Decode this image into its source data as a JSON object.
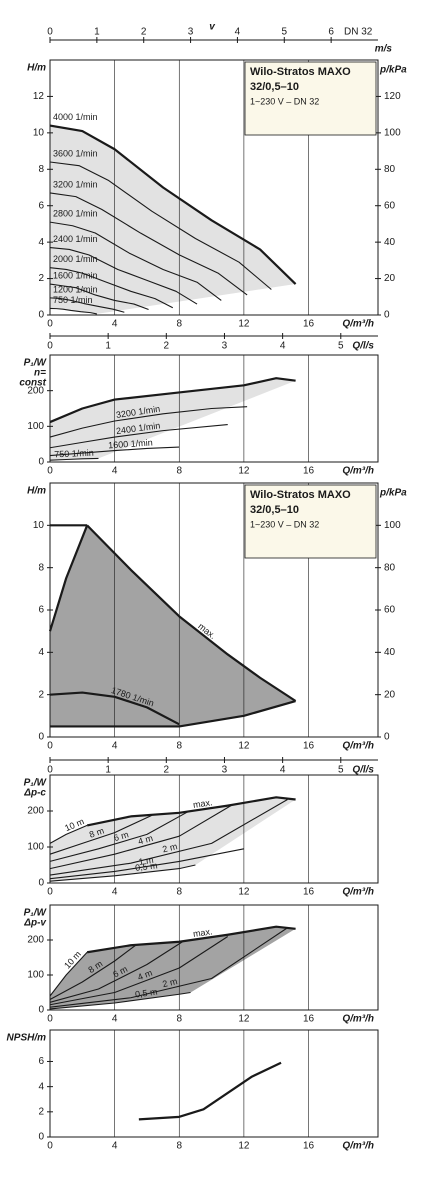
{
  "chart_data": [
    {
      "type": "axis",
      "label": "v",
      "unit": "m/s",
      "note": "DN 32",
      "xlim": [
        0,
        7.0
      ],
      "xticks": [
        0,
        1,
        2,
        3,
        4,
        5,
        6
      ]
    },
    {
      "type": "line",
      "y_label": [
        "H/m"
      ],
      "x_label": "Q/m³/h",
      "y2_label": "p/kPa",
      "box": [
        "Wilo-Stratos MAXO",
        "32/0,5–10",
        "1~230 V – DN 32"
      ],
      "xlim": [
        0,
        20.3
      ],
      "xticks": [
        0,
        4,
        8,
        12,
        16
      ],
      "ylim": [
        0,
        14
      ],
      "yticks": [
        0,
        2,
        4,
        6,
        8,
        10,
        12
      ],
      "y2lim": [
        0,
        140
      ],
      "y2ticks": [
        0,
        20,
        40,
        60,
        80,
        100,
        120
      ],
      "grid": true,
      "color": "#1a1a1a",
      "fill": "#e2e2e2",
      "series": [
        {
          "name": "4000 1/min",
          "x": [
            0,
            2,
            4,
            7,
            10,
            13,
            15.2
          ],
          "values": [
            10.4,
            10.1,
            9.1,
            7.0,
            5.2,
            3.6,
            1.7
          ]
        },
        {
          "name": "3600 1/min",
          "x": [
            0,
            1.8,
            3.6,
            6.3,
            9,
            11.7,
            13.7
          ],
          "values": [
            8.4,
            8.2,
            7.4,
            5.7,
            4.2,
            2.9,
            1.4
          ]
        },
        {
          "name": "3200 1/min",
          "x": [
            0,
            1.6,
            3.2,
            5.6,
            8,
            10.4,
            12.2
          ],
          "values": [
            6.7,
            6.5,
            5.8,
            4.5,
            3.3,
            2.3,
            1.1
          ]
        },
        {
          "name": "2800 1/min",
          "x": [
            0,
            1.4,
            2.8,
            4.9,
            7,
            9.1,
            10.6
          ],
          "values": [
            5.1,
            4.9,
            4.5,
            3.4,
            2.5,
            1.8,
            0.8
          ]
        },
        {
          "name": "2400 1/min",
          "x": [
            0,
            1.2,
            2.4,
            4.2,
            6,
            7.8,
            9.1
          ],
          "values": [
            3.7,
            3.6,
            3.3,
            2.5,
            1.9,
            1.3,
            0.6
          ]
        },
        {
          "name": "2000 1/min",
          "x": [
            0,
            1,
            2,
            3.5,
            5,
            6.5,
            7.6
          ],
          "values": [
            2.6,
            2.5,
            2.3,
            1.8,
            1.3,
            0.9,
            0.4
          ]
        },
        {
          "name": "1600 1/min",
          "x": [
            0,
            0.8,
            1.6,
            2.8,
            4,
            5.2,
            6.1
          ],
          "values": [
            1.7,
            1.6,
            1.5,
            1.1,
            0.8,
            0.6,
            0.3
          ]
        },
        {
          "name": "1200 1/min",
          "x": [
            0,
            0.6,
            1.2,
            2.1,
            3,
            3.9,
            4.6
          ],
          "values": [
            0.94,
            0.91,
            0.82,
            0.63,
            0.47,
            0.32,
            0.15
          ]
        },
        {
          "name": "750 1/min",
          "x": [
            0,
            0.4,
            0.8,
            1.3,
            1.9,
            2.5,
            2.9
          ],
          "values": [
            0.36,
            0.35,
            0.32,
            0.25,
            0.18,
            0.13,
            0.06
          ]
        }
      ]
    },
    {
      "type": "axis",
      "label": "Q/l/s",
      "xlim": [
        0,
        5.64
      ],
      "xticks": [
        0,
        1,
        2,
        3,
        4,
        5
      ]
    },
    {
      "type": "line",
      "y_label": [
        "P₁/W",
        "n=",
        "const"
      ],
      "x_label": "Q/m³/h",
      "xlim": [
        0,
        20.3
      ],
      "xticks": [
        0,
        4,
        8,
        12,
        16
      ],
      "ylim": [
        0,
        300
      ],
      "yticks": [
        0,
        100,
        200
      ],
      "grid": true,
      "color": "#1a1a1a",
      "fill": "#e2e2e2",
      "series": [
        {
          "x": [
            0,
            2,
            4,
            8,
            12,
            14,
            15.2
          ],
          "values": [
            112,
            150,
            175,
            195,
            215,
            235,
            228
          ]
        },
        {
          "name": "3200 1/min",
          "x": [
            0,
            2,
            4,
            7,
            10,
            12.2
          ],
          "values": [
            70,
            95,
            115,
            135,
            150,
            155
          ]
        },
        {
          "name": "2400 1/min",
          "x": [
            0,
            2,
            4,
            7,
            11
          ],
          "values": [
            40,
            55,
            70,
            88,
            105
          ]
        },
        {
          "name": "1600 1/min",
          "x": [
            0,
            2,
            4,
            6,
            8
          ],
          "values": [
            18,
            25,
            32,
            38,
            42
          ]
        },
        {
          "name": "750 1/min",
          "x": [
            0,
            1,
            2,
            3
          ],
          "values": [
            5,
            7,
            9,
            10
          ]
        }
      ]
    },
    {
      "type": "line",
      "y_label": [
        "H/m"
      ],
      "x_label": "Q/m³/h",
      "y2_label": "p/kPa",
      "box": [
        "Wilo-Stratos MAXO",
        "32/0,5–10",
        "1~230 V – DN 32"
      ],
      "xlim": [
        0,
        20.3
      ],
      "xticks": [
        0,
        4,
        8,
        12,
        16
      ],
      "ylim": [
        0,
        12
      ],
      "yticks": [
        0,
        2,
        4,
        6,
        8,
        10
      ],
      "y2lim": [
        0,
        120
      ],
      "y2ticks": [
        0,
        20,
        40,
        60,
        80,
        100
      ],
      "grid": true,
      "color": "#1a1a1a",
      "fill": "#a3a3a3",
      "series": [
        {
          "name": "max.",
          "x": [
            2.3,
            5,
            8,
            11,
            13,
            15.2
          ],
          "values": [
            10,
            7.9,
            5.7,
            3.9,
            2.8,
            1.7
          ]
        },
        {
          "x": [
            0,
            1,
            2.3
          ],
          "values": [
            5,
            7.5,
            10
          ]
        },
        {
          "x": [
            0,
            2.3
          ],
          "values": [
            10,
            10
          ]
        },
        {
          "x": [
            0,
            8,
            12,
            15.2
          ],
          "values": [
            0.5,
            0.5,
            1.0,
            1.7
          ]
        },
        {
          "name": "1780 1/min",
          "x": [
            0,
            2,
            4,
            6,
            8
          ],
          "values": [
            2.0,
            2.1,
            1.9,
            1.4,
            0.6
          ]
        }
      ]
    },
    {
      "type": "axis",
      "label": "Q/l/s",
      "xlim": [
        0,
        5.64
      ],
      "xticks": [
        0,
        1,
        2,
        3,
        4,
        5
      ]
    },
    {
      "type": "line",
      "y_label": [
        "P₁/W",
        "Δp-c"
      ],
      "x_label": "Q/m³/h",
      "xlim": [
        0,
        20.3
      ],
      "xticks": [
        0,
        4,
        8,
        12,
        16
      ],
      "ylim": [
        0,
        300
      ],
      "yticks": [
        0,
        100,
        200
      ],
      "grid": true,
      "color": "#1a1a1a",
      "fill": "#e2e2e2",
      "series": [
        {
          "name": "max.",
          "x": [
            2.3,
            5,
            8,
            11,
            14,
            15.2
          ],
          "values": [
            160,
            185,
            195,
            215,
            238,
            232
          ]
        },
        {
          "name": "10 m",
          "x": [
            0,
            1,
            2.3
          ],
          "values": [
            110,
            135,
            160
          ]
        },
        {
          "name": "8 m",
          "x": [
            0,
            2,
            4,
            6.3
          ],
          "values": [
            80,
            110,
            140,
            188
          ]
        },
        {
          "name": "6 m",
          "x": [
            0,
            3,
            6,
            8.5
          ],
          "values": [
            60,
            95,
            135,
            197
          ]
        },
        {
          "name": "4 m",
          "x": [
            0,
            4,
            8,
            11.2
          ],
          "values": [
            40,
            80,
            130,
            215
          ]
        },
        {
          "name": "2 m",
          "x": [
            0,
            5,
            10,
            14.7
          ],
          "values": [
            22,
            55,
            110,
            232
          ]
        },
        {
          "name": "1 m",
          "x": [
            0,
            4,
            8,
            12
          ],
          "values": [
            12,
            32,
            60,
            95
          ]
        },
        {
          "name": "0,5 m",
          "x": [
            0,
            4,
            8,
            9
          ],
          "values": [
            5,
            20,
            40,
            50
          ]
        }
      ]
    },
    {
      "type": "line",
      "y_label": [
        "P₁/W",
        "Δp-v"
      ],
      "x_label": "Q/m³/h",
      "xlim": [
        0,
        20.3
      ],
      "xticks": [
        0,
        4,
        8,
        12,
        16
      ],
      "ylim": [
        0,
        300
      ],
      "yticks": [
        0,
        100,
        200
      ],
      "grid": true,
      "color": "#1a1a1a",
      "fill": "#a3a3a3",
      "series": [
        {
          "name": "max.",
          "x": [
            2.3,
            5,
            8,
            11,
            14,
            15.2
          ],
          "values": [
            165,
            185,
            195,
            215,
            238,
            232
          ]
        },
        {
          "name": "10 m",
          "x": [
            0,
            1,
            2.3
          ],
          "values": [
            40,
            100,
            165
          ]
        },
        {
          "name": "8 m",
          "x": [
            0,
            2,
            4,
            5.3
          ],
          "values": [
            30,
            80,
            140,
            185
          ]
        },
        {
          "name": "6 m",
          "x": [
            0,
            3,
            6,
            8.2
          ],
          "values": [
            22,
            60,
            130,
            195
          ]
        },
        {
          "name": "4 m",
          "x": [
            0,
            4,
            8,
            11
          ],
          "values": [
            15,
            50,
            120,
            210
          ]
        },
        {
          "name": "2 m",
          "x": [
            0,
            5,
            10,
            14.7
          ],
          "values": [
            8,
            35,
            90,
            235
          ]
        },
        {
          "name": "0,5 m",
          "x": [
            0,
            4,
            8,
            8.7
          ],
          "values": [
            3,
            20,
            45,
            50
          ]
        }
      ]
    },
    {
      "type": "line",
      "y_label": [
        "NPSH/m"
      ],
      "x_label": "Q/m³/h",
      "xlim": [
        0,
        20.3
      ],
      "xticks": [
        0,
        4,
        8,
        12,
        16
      ],
      "ylim": [
        0,
        8.5
      ],
      "yticks": [
        0,
        2,
        4,
        6
      ],
      "grid": true,
      "color": "#1a1a1a",
      "series": [
        {
          "x": [
            5.5,
            8,
            9.5,
            11,
            12.5,
            14.3
          ],
          "values": [
            1.4,
            1.6,
            2.2,
            3.5,
            4.8,
            5.9
          ]
        }
      ]
    }
  ]
}
